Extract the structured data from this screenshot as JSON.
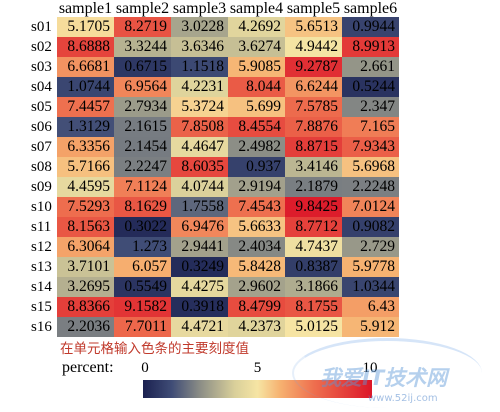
{
  "chart_data": {
    "type": "heatmap",
    "columns": [
      "sample1",
      "sample2",
      "sample3",
      "sample4",
      "sample5",
      "sample6"
    ],
    "rows": [
      "s01",
      "s02",
      "s03",
      "s04",
      "s05",
      "s06",
      "s07",
      "s08",
      "s09",
      "s10",
      "s11",
      "s12",
      "s13",
      "s14",
      "s15",
      "s16"
    ],
    "values": [
      [
        5.1705,
        8.2719,
        3.0228,
        4.2692,
        5.6513,
        0.9944
      ],
      [
        8.6888,
        3.3244,
        3.6346,
        3.6274,
        4.9442,
        8.9913
      ],
      [
        6.6681,
        0.6715,
        1.1518,
        5.9085,
        9.2787,
        2.661
      ],
      [
        1.0744,
        6.9564,
        4.2231,
        8.044,
        6.6244,
        0.5244
      ],
      [
        7.4457,
        2.7934,
        5.3724,
        5.699,
        7.5785,
        2.347
      ],
      [
        1.3129,
        2.1615,
        7.8508,
        8.4554,
        7.8876,
        7.165
      ],
      [
        6.3356,
        2.1454,
        4.4647,
        2.4982,
        8.8715,
        7.9343
      ],
      [
        5.7166,
        2.2247,
        8.6035,
        0.937,
        3.4146,
        5.6968
      ],
      [
        4.4595,
        7.1124,
        4.0744,
        2.9194,
        2.1879,
        2.2248
      ],
      [
        7.5293,
        8.1629,
        1.7558,
        7.4543,
        9.8425,
        7.0124
      ],
      [
        8.1563,
        0.3022,
        6.9476,
        5.6633,
        8.7712,
        0.9082
      ],
      [
        6.3064,
        1.273,
        2.9441,
        2.4034,
        4.7437,
        2.729
      ],
      [
        3.7101,
        6.057,
        0.3249,
        5.8428,
        0.8387,
        5.9778
      ],
      [
        3.2695,
        0.5549,
        4.4275,
        2.9602,
        3.1866,
        1.0344
      ],
      [
        8.8366,
        9.1582,
        0.3918,
        8.4799,
        8.1755,
        6.43
      ],
      [
        2.2036,
        7.7011,
        4.4721,
        4.2373,
        5.0125,
        5.912
      ]
    ],
    "colorbar": {
      "label": "percent:",
      "range": [
        0,
        10
      ],
      "ticks": [
        0,
        5,
        10
      ],
      "colors": [
        {
          "value": 0,
          "color": "#1b2150"
        },
        {
          "value": 1.25,
          "color": "#3f4c76"
        },
        {
          "value": 2.5,
          "color": "#8c8e86"
        },
        {
          "value": 4,
          "color": "#d9cf9a"
        },
        {
          "value": 5,
          "color": "#f6e5a4"
        },
        {
          "value": 6,
          "color": "#f6b170"
        },
        {
          "value": 7.5,
          "color": "#ee6e4e"
        },
        {
          "value": 10,
          "color": "#dc1629"
        }
      ]
    },
    "annotation": "在单元格输入色条的主要刻度值",
    "grid": false,
    "legend_position": "bottom"
  },
  "colors": {
    "annotation_text": "#c0392b",
    "cell_text": "#000000"
  },
  "watermark": {
    "title": "我爱IT技术网",
    "url": "www.52ij.com"
  }
}
